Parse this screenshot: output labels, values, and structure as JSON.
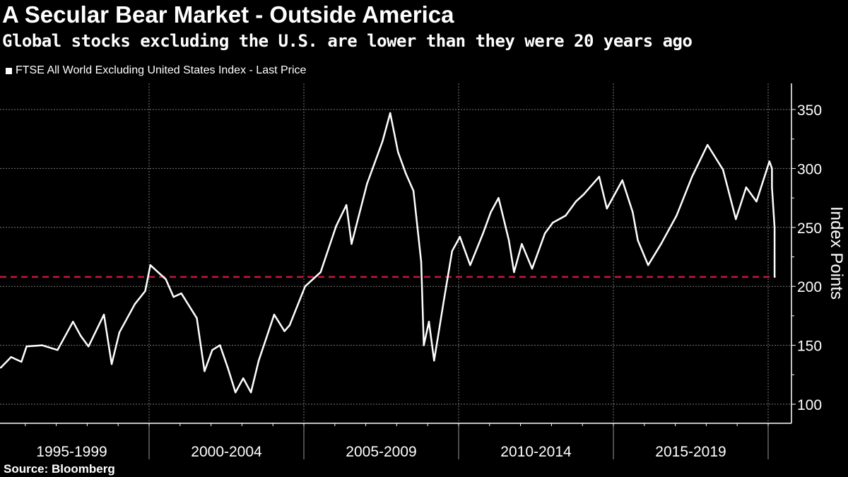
{
  "chart_data": {
    "type": "line",
    "title": "A Secular Bear Market - Outside America",
    "subtitle": "Global stocks excluding the U.S. are lower than they were 20 years ago",
    "legend": {
      "position": "top-left",
      "entries": [
        "FTSE All World Excluding United States Index - Last Price"
      ]
    },
    "ylabel": "Index Points",
    "ylim": [
      84,
      372
    ],
    "yticks": [
      100,
      150,
      200,
      250,
      300,
      350
    ],
    "x_range": [
      "1995-01",
      "2020-06"
    ],
    "x_category_labels": [
      "1995-1999",
      "2000-2004",
      "2005-2009",
      "2010-2014",
      "2015-2019"
    ],
    "grid": true,
    "reference_line": {
      "value": 208,
      "color": "#c8163c",
      "style": "dashed"
    },
    "series": [
      {
        "name": "FTSE All World Excluding United States Index - Last Price",
        "color": "#ffffff",
        "points": [
          [
            "1995-03",
            131
          ],
          [
            "1995-07",
            140
          ],
          [
            "1995-11",
            136
          ],
          [
            "1996-01",
            149
          ],
          [
            "1996-07",
            150
          ],
          [
            "1997-01",
            146
          ],
          [
            "1997-07",
            170
          ],
          [
            "1997-10",
            158
          ],
          [
            "1998-01",
            149
          ],
          [
            "1998-07",
            176
          ],
          [
            "1998-10",
            134
          ],
          [
            "1999-01",
            161
          ],
          [
            "1999-07",
            185
          ],
          [
            "1999-11",
            196
          ],
          [
            "2000-01",
            218
          ],
          [
            "2000-04",
            212
          ],
          [
            "2000-07",
            206
          ],
          [
            "2000-10",
            191
          ],
          [
            "2001-01",
            194
          ],
          [
            "2001-07",
            173
          ],
          [
            "2001-10",
            128
          ],
          [
            "2002-01",
            146
          ],
          [
            "2002-04",
            150
          ],
          [
            "2002-07",
            131
          ],
          [
            "2002-10",
            110
          ],
          [
            "2003-01",
            122
          ],
          [
            "2003-04",
            110
          ],
          [
            "2003-07",
            137
          ],
          [
            "2004-01",
            176
          ],
          [
            "2004-05",
            162
          ],
          [
            "2004-07",
            167
          ],
          [
            "2005-01",
            200
          ],
          [
            "2005-07",
            212
          ],
          [
            "2006-01",
            251
          ],
          [
            "2006-05",
            269
          ],
          [
            "2006-07",
            236
          ],
          [
            "2007-01",
            287
          ],
          [
            "2007-07",
            323
          ],
          [
            "2007-10",
            347
          ],
          [
            "2008-01",
            314
          ],
          [
            "2008-04",
            296
          ],
          [
            "2008-07",
            281
          ],
          [
            "2008-10",
            221
          ],
          [
            "2008-11",
            150
          ],
          [
            "2009-01",
            170
          ],
          [
            "2009-03",
            137
          ],
          [
            "2009-07",
            191
          ],
          [
            "2009-10",
            230
          ],
          [
            "2010-01",
            242
          ],
          [
            "2010-05",
            218
          ],
          [
            "2010-10",
            245
          ],
          [
            "2011-01",
            263
          ],
          [
            "2011-04",
            275
          ],
          [
            "2011-08",
            239
          ],
          [
            "2011-10",
            212
          ],
          [
            "2012-01",
            236
          ],
          [
            "2012-05",
            215
          ],
          [
            "2012-10",
            245
          ],
          [
            "2013-01",
            254
          ],
          [
            "2013-06",
            260
          ],
          [
            "2013-10",
            272
          ],
          [
            "2014-01",
            278
          ],
          [
            "2014-07",
            293
          ],
          [
            "2014-10",
            266
          ],
          [
            "2015-04",
            290
          ],
          [
            "2015-08",
            263
          ],
          [
            "2015-10",
            239
          ],
          [
            "2016-02",
            218
          ],
          [
            "2016-07",
            236
          ],
          [
            "2017-01",
            260
          ],
          [
            "2017-07",
            293
          ],
          [
            "2018-01",
            320
          ],
          [
            "2018-07",
            299
          ],
          [
            "2018-12",
            257
          ],
          [
            "2019-04",
            284
          ],
          [
            "2019-08",
            272
          ],
          [
            "2020-01",
            306
          ],
          [
            "2020-02",
            300
          ],
          [
            "2020-02",
            284
          ],
          [
            "2020-03",
            250
          ],
          [
            "2020-03",
            225
          ],
          [
            "2020-03",
            208
          ]
        ]
      }
    ],
    "source": "Source: Bloomberg"
  }
}
